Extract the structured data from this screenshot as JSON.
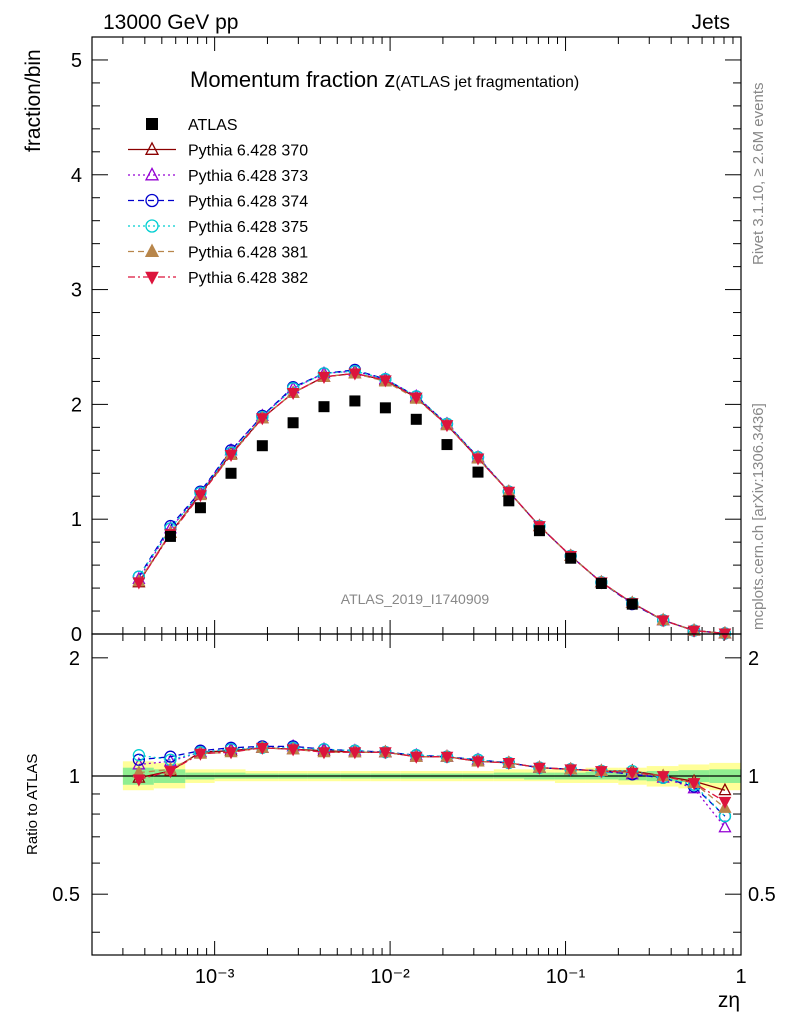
{
  "header": {
    "energy": "13000 GeV pp",
    "category": "Jets",
    "title_main": "Momentum fraction z",
    "title_sub": "(ATLAS jet fragmentation)",
    "analysis_id": "ATLAS_2019_I1740909",
    "side_rivet": "Rivet 3.1.10, ≥ 2.6M events",
    "side_source": "mcplots.cern.ch [arXiv:1306.3436]"
  },
  "colors": {
    "data": "#000000",
    "band_inner": "#90ee90",
    "band_outer": "#ffff99"
  },
  "chart_data": [
    {
      "type": "scatter",
      "log_x": true,
      "xlim": [
        0.0002,
        1
      ],
      "ylim": [
        0,
        5.2
      ],
      "xlabel": "zη",
      "ylabel": "fraction/bin",
      "y_ticks": [
        "0",
        "1",
        "2",
        "3",
        "4",
        "5"
      ],
      "x_ticks": [
        "10⁻³",
        "10⁻²",
        "10⁻¹",
        "1"
      ],
      "legend_position": "top-left",
      "x": [
        0.00037,
        0.00056,
        0.00083,
        0.00124,
        0.00187,
        0.0028,
        0.0042,
        0.0063,
        0.0094,
        0.0141,
        0.0211,
        0.0317,
        0.0475,
        0.071,
        0.107,
        0.16,
        0.24,
        0.36,
        0.54,
        0.81
      ],
      "series": [
        {
          "name": "ATLAS",
          "color": "#000000",
          "marker": "square",
          "line": "none",
          "values": [
            null,
            0.85,
            1.1,
            1.4,
            1.64,
            1.84,
            1.98,
            2.03,
            1.97,
            1.87,
            1.65,
            1.41,
            1.16,
            0.9,
            0.66,
            0.44,
            0.26,
            null,
            null,
            null
          ]
        },
        {
          "name": "Pythia 6.428 370",
          "color": "#8b0000",
          "marker": "triangle-open",
          "line": "solid",
          "values": [
            0.45,
            0.88,
            1.22,
            1.57,
            1.88,
            2.1,
            2.24,
            2.27,
            2.21,
            2.06,
            1.82,
            1.53,
            1.24,
            0.94,
            0.68,
            0.45,
            0.27,
            0.12,
            0.03,
            0.005
          ]
        },
        {
          "name": "Pythia 6.428 373",
          "color": "#9400d3",
          "marker": "triangle-open",
          "line": "dotted",
          "values": [
            0.48,
            0.92,
            1.23,
            1.6,
            1.9,
            2.14,
            2.27,
            2.29,
            2.22,
            2.07,
            1.83,
            1.54,
            1.24,
            0.94,
            0.68,
            0.45,
            0.27,
            0.12,
            0.03,
            0.004
          ]
        },
        {
          "name": "Pythia 6.428 374",
          "color": "#0000cd",
          "marker": "circle-open",
          "line": "dashed",
          "values": [
            0.5,
            0.94,
            1.24,
            1.6,
            1.9,
            2.15,
            2.27,
            2.3,
            2.22,
            2.07,
            1.83,
            1.54,
            1.24,
            0.94,
            0.68,
            0.45,
            0.26,
            0.12,
            0.03,
            0.005
          ]
        },
        {
          "name": "Pythia 6.428 375",
          "color": "#00ced1",
          "marker": "circle-open",
          "line": "dotted",
          "values": [
            0.5,
            0.92,
            1.23,
            1.58,
            1.89,
            2.14,
            2.27,
            2.29,
            2.22,
            2.07,
            1.83,
            1.54,
            1.24,
            0.94,
            0.68,
            0.45,
            0.27,
            0.12,
            0.03,
            0.005
          ]
        },
        {
          "name": "Pythia 6.428 381",
          "color": "#b8864b",
          "marker": "triangle-filled",
          "line": "dashed",
          "values": [
            0.46,
            0.88,
            1.21,
            1.56,
            1.88,
            2.1,
            2.24,
            2.27,
            2.2,
            2.05,
            1.82,
            1.53,
            1.24,
            0.94,
            0.68,
            0.45,
            0.27,
            0.12,
            0.03,
            0.005
          ]
        },
        {
          "name": "Pythia 6.428 382",
          "color": "#dc143c",
          "marker": "triangle-down-filled",
          "line": "dashdot",
          "values": [
            0.45,
            0.87,
            1.21,
            1.56,
            1.88,
            2.1,
            2.24,
            2.27,
            2.21,
            2.06,
            1.82,
            1.53,
            1.24,
            0.94,
            0.68,
            0.45,
            0.27,
            0.12,
            0.03,
            0.005
          ]
        }
      ]
    },
    {
      "type": "line",
      "log_x": true,
      "xlim": [
        0.0002,
        1
      ],
      "ylim": [
        0.35,
        2.3
      ],
      "xlabel": "zη",
      "ylabel": "Ratio to ATLAS",
      "y_ticks": [
        "0.5",
        "1",
        "2"
      ],
      "reference": 1,
      "x": [
        0.00037,
        0.00056,
        0.00083,
        0.00124,
        0.00187,
        0.0028,
        0.0042,
        0.0063,
        0.0094,
        0.0141,
        0.0211,
        0.0317,
        0.0475,
        0.071,
        0.107,
        0.16,
        0.24,
        0.36,
        0.54,
        0.81
      ],
      "band_edges": [
        0.0003,
        0.00045,
        0.00068,
        0.001,
        0.0015,
        0.0023,
        0.0034,
        0.0052,
        0.0077,
        0.0115,
        0.017,
        0.026,
        0.039,
        0.058,
        0.087,
        0.13,
        0.2,
        0.29,
        0.44,
        0.66,
        1
      ],
      "band_outer": [
        [
          0.92,
          1.09
        ],
        [
          0.93,
          1.08
        ],
        [
          0.96,
          1.04
        ],
        [
          0.97,
          1.04
        ],
        [
          0.97,
          1.03
        ],
        [
          0.97,
          1.03
        ],
        [
          0.97,
          1.03
        ],
        [
          0.97,
          1.03
        ],
        [
          0.97,
          1.03
        ],
        [
          0.97,
          1.03
        ],
        [
          0.97,
          1.03
        ],
        [
          0.97,
          1.03
        ],
        [
          0.97,
          1.04
        ],
        [
          0.97,
          1.04
        ],
        [
          0.96,
          1.04
        ],
        [
          0.96,
          1.05
        ],
        [
          0.95,
          1.05
        ],
        [
          0.94,
          1.06
        ],
        [
          0.93,
          1.07
        ],
        [
          0.92,
          1.08
        ]
      ],
      "band_inner": [
        [
          0.95,
          1.05
        ],
        [
          0.96,
          1.04
        ],
        [
          0.98,
          1.02
        ],
        [
          0.985,
          1.02
        ],
        [
          0.985,
          1.015
        ],
        [
          0.985,
          1.015
        ],
        [
          0.985,
          1.015
        ],
        [
          0.985,
          1.015
        ],
        [
          0.985,
          1.015
        ],
        [
          0.985,
          1.015
        ],
        [
          0.985,
          1.015
        ],
        [
          0.985,
          1.015
        ],
        [
          0.985,
          1.02
        ],
        [
          0.98,
          1.02
        ],
        [
          0.98,
          1.02
        ],
        [
          0.98,
          1.025
        ],
        [
          0.975,
          1.025
        ],
        [
          0.97,
          1.03
        ],
        [
          0.965,
          1.035
        ],
        [
          0.96,
          1.04
        ]
      ],
      "series": [
        {
          "name": "Pythia 6.428 370",
          "color": "#8b0000",
          "marker": "triangle-open",
          "line": "solid",
          "values": [
            0.99,
            1.03,
            1.15,
            1.16,
            1.18,
            1.17,
            1.16,
            1.15,
            1.15,
            1.12,
            1.12,
            1.09,
            1.08,
            1.05,
            1.04,
            1.03,
            1.03,
            1.0,
            0.97,
            0.92
          ]
        },
        {
          "name": "Pythia 6.428 373",
          "color": "#9400d3",
          "marker": "triangle-open",
          "line": "dotted",
          "values": [
            1.07,
            1.09,
            1.15,
            1.17,
            1.18,
            1.19,
            1.17,
            1.16,
            1.15,
            1.13,
            1.12,
            1.1,
            1.08,
            1.05,
            1.04,
            1.03,
            1.01,
            0.99,
            0.93,
            0.74
          ]
        },
        {
          "name": "Pythia 6.428 374",
          "color": "#0000cd",
          "marker": "circle-open",
          "line": "dashed",
          "values": [
            1.1,
            1.12,
            1.16,
            1.18,
            1.19,
            1.19,
            1.17,
            1.16,
            1.15,
            1.13,
            1.12,
            1.1,
            1.08,
            1.05,
            1.04,
            1.03,
            1.01,
            0.99,
            0.94,
            0.79
          ]
        },
        {
          "name": "Pythia 6.428 375",
          "color": "#00ced1",
          "marker": "circle-open",
          "line": "dotted",
          "values": [
            1.13,
            1.1,
            1.15,
            1.17,
            1.18,
            1.18,
            1.17,
            1.16,
            1.15,
            1.13,
            1.12,
            1.1,
            1.08,
            1.05,
            1.04,
            1.03,
            1.03,
            0.99,
            0.95,
            0.79
          ]
        },
        {
          "name": "Pythia 6.428 381",
          "color": "#b8864b",
          "marker": "triangle-filled",
          "line": "dashed",
          "values": [
            1.02,
            1.04,
            1.14,
            1.15,
            1.18,
            1.17,
            1.15,
            1.15,
            1.15,
            1.12,
            1.12,
            1.09,
            1.08,
            1.05,
            1.04,
            1.03,
            1.02,
            1.0,
            0.96,
            0.83
          ]
        },
        {
          "name": "Pythia 6.428 382",
          "color": "#dc143c",
          "marker": "triangle-down-filled",
          "line": "dashdot",
          "values": [
            0.98,
            1.03,
            1.14,
            1.15,
            1.18,
            1.17,
            1.15,
            1.15,
            1.15,
            1.12,
            1.12,
            1.09,
            1.08,
            1.05,
            1.04,
            1.03,
            1.02,
            1.0,
            0.96,
            0.86
          ]
        }
      ]
    }
  ]
}
